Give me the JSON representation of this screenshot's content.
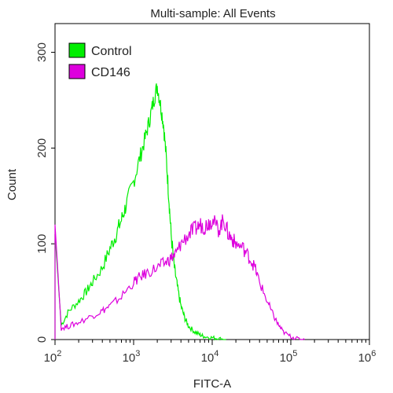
{
  "chart_data": {
    "type": "line",
    "title": "Multi-sample: All Events",
    "xlabel": "FITC-A",
    "ylabel": "Count",
    "xscale": "log",
    "xlim": [
      100,
      1000000
    ],
    "ylim": [
      0,
      330
    ],
    "x_ticks": [
      {
        "base": "10",
        "exp": "2",
        "value": 100
      },
      {
        "base": "10",
        "exp": "3",
        "value": 1000
      },
      {
        "base": "10",
        "exp": "4",
        "value": 10000
      },
      {
        "base": "10",
        "exp": "5",
        "value": 100000
      },
      {
        "base": "10",
        "exp": "6",
        "value": 1000000
      }
    ],
    "y_ticks": [
      0,
      100,
      200,
      300
    ],
    "legend_position": "top-left",
    "series": [
      {
        "name": "Control",
        "color": "#00ee00",
        "x": [
          100,
          120,
          150,
          200,
          250,
          300,
          400,
          500,
          600,
          700,
          800,
          1000,
          1200,
          1400,
          1600,
          1800,
          2000,
          2200,
          2400,
          2600,
          2800,
          3000,
          3300,
          3600,
          4000,
          4500,
          5000,
          6000,
          7000,
          8000,
          10000,
          12000,
          15000
        ],
        "y": [
          110,
          15,
          30,
          40,
          50,
          60,
          75,
          95,
          110,
          125,
          140,
          165,
          190,
          210,
          230,
          250,
          265,
          245,
          225,
          190,
          150,
          110,
          75,
          55,
          35,
          22,
          14,
          8,
          5,
          3,
          2,
          1,
          0
        ]
      },
      {
        "name": "CD146",
        "color": "#dd00dd",
        "x": [
          100,
          120,
          150,
          200,
          300,
          400,
          500,
          700,
          1000,
          1200,
          1500,
          2000,
          2500,
          3000,
          3500,
          4000,
          5000,
          6000,
          7000,
          8000,
          9000,
          10000,
          12000,
          14000,
          16000,
          18000,
          20000,
          25000,
          30000,
          35000,
          40000,
          50000,
          60000,
          70000,
          80000,
          100000,
          120000,
          150000
        ],
        "y": [
          120,
          12,
          14,
          18,
          25,
          30,
          35,
          45,
          60,
          65,
          70,
          75,
          80,
          85,
          90,
          100,
          110,
          115,
          120,
          118,
          122,
          125,
          115,
          125,
          110,
          105,
          100,
          95,
          85,
          75,
          60,
          40,
          25,
          15,
          8,
          3,
          1,
          0
        ]
      }
    ]
  }
}
